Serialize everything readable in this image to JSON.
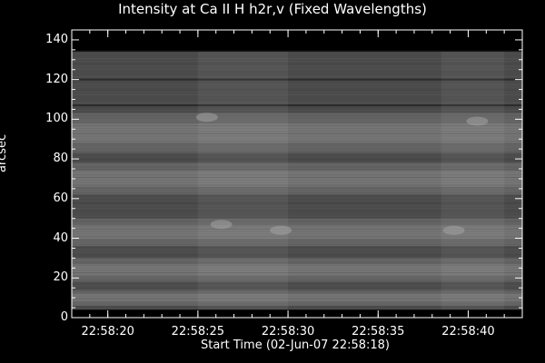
{
  "chart_data": {
    "type": "heatmap",
    "title": "Intensity at Ca II H h2r,v (Fixed Wavelengths)",
    "xlabel": "Start Time (02-Jun-07 22:58:18)",
    "ylabel": "arcsec",
    "x_ticks": [
      "22:58:20",
      "22:58:25",
      "22:58:30",
      "22:58:35",
      "22:58:40"
    ],
    "x_tick_seconds": [
      2,
      7,
      12,
      17,
      22
    ],
    "xlim_seconds": [
      0,
      25
    ],
    "y_ticks": [
      0,
      20,
      40,
      60,
      80,
      100,
      120,
      140
    ],
    "ylim": [
      0,
      145
    ],
    "data_extent_y": [
      4,
      134
    ],
    "colormap": "grayscale",
    "bright_bands_arcsec": [
      [
        83,
        103
      ],
      [
        62,
        78
      ],
      [
        36,
        50
      ],
      [
        18,
        30
      ],
      [
        6,
        14
      ]
    ],
    "dark_lines_arcsec": [
      107,
      120
    ],
    "bright_blobs": [
      {
        "t": 7.5,
        "y": 101
      },
      {
        "t": 8.3,
        "y": 47
      },
      {
        "t": 11.6,
        "y": 44
      },
      {
        "t": 21.2,
        "y": 44
      },
      {
        "t": 22.5,
        "y": 99
      }
    ]
  }
}
